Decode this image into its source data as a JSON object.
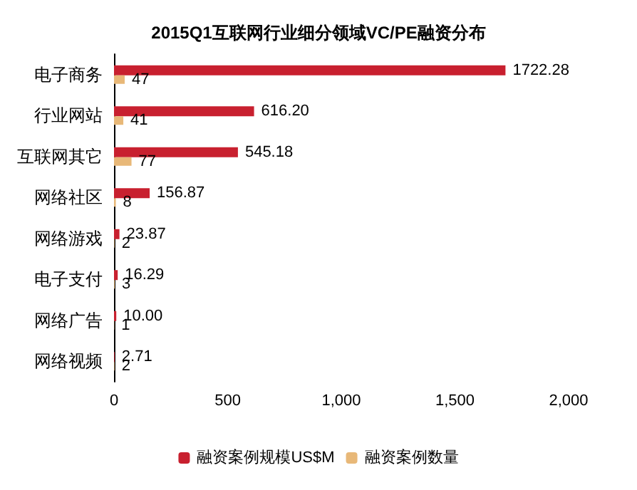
{
  "chart_data": {
    "type": "bar",
    "orientation": "horizontal",
    "title": "2015Q1互联网行业细分领域VC/PE融资分布",
    "categories": [
      "电子商务",
      "行业网站",
      "互联网其它",
      "网络社区",
      "网络游戏",
      "电子支付",
      "网络广告",
      "网络视频"
    ],
    "series": [
      {
        "name": "融资案例规模US$M",
        "color": "#c8202f",
        "values": [
          1722.28,
          616.2,
          545.18,
          156.87,
          23.87,
          16.29,
          10.0,
          2.71
        ],
        "value_labels": [
          "1722.28",
          "616.20",
          "545.18",
          "156.87",
          "23.87",
          "16.29",
          "10.00",
          "2.71"
        ]
      },
      {
        "name": "融资案例数量",
        "color": "#e8b878",
        "values": [
          47,
          41,
          77,
          8,
          2,
          3,
          1,
          2
        ],
        "value_labels": [
          "47",
          "41",
          "77",
          "8",
          "2",
          "3",
          "1",
          "2"
        ]
      }
    ],
    "xlim": [
      0,
      2000
    ],
    "xticks": [
      0,
      500,
      {
        "value": 1000,
        "label": "1,000"
      },
      {
        "value": 1500,
        "label": "1,500"
      },
      {
        "value": 2000,
        "label": "2,000"
      }
    ],
    "grid": false,
    "legend": "bottom"
  }
}
